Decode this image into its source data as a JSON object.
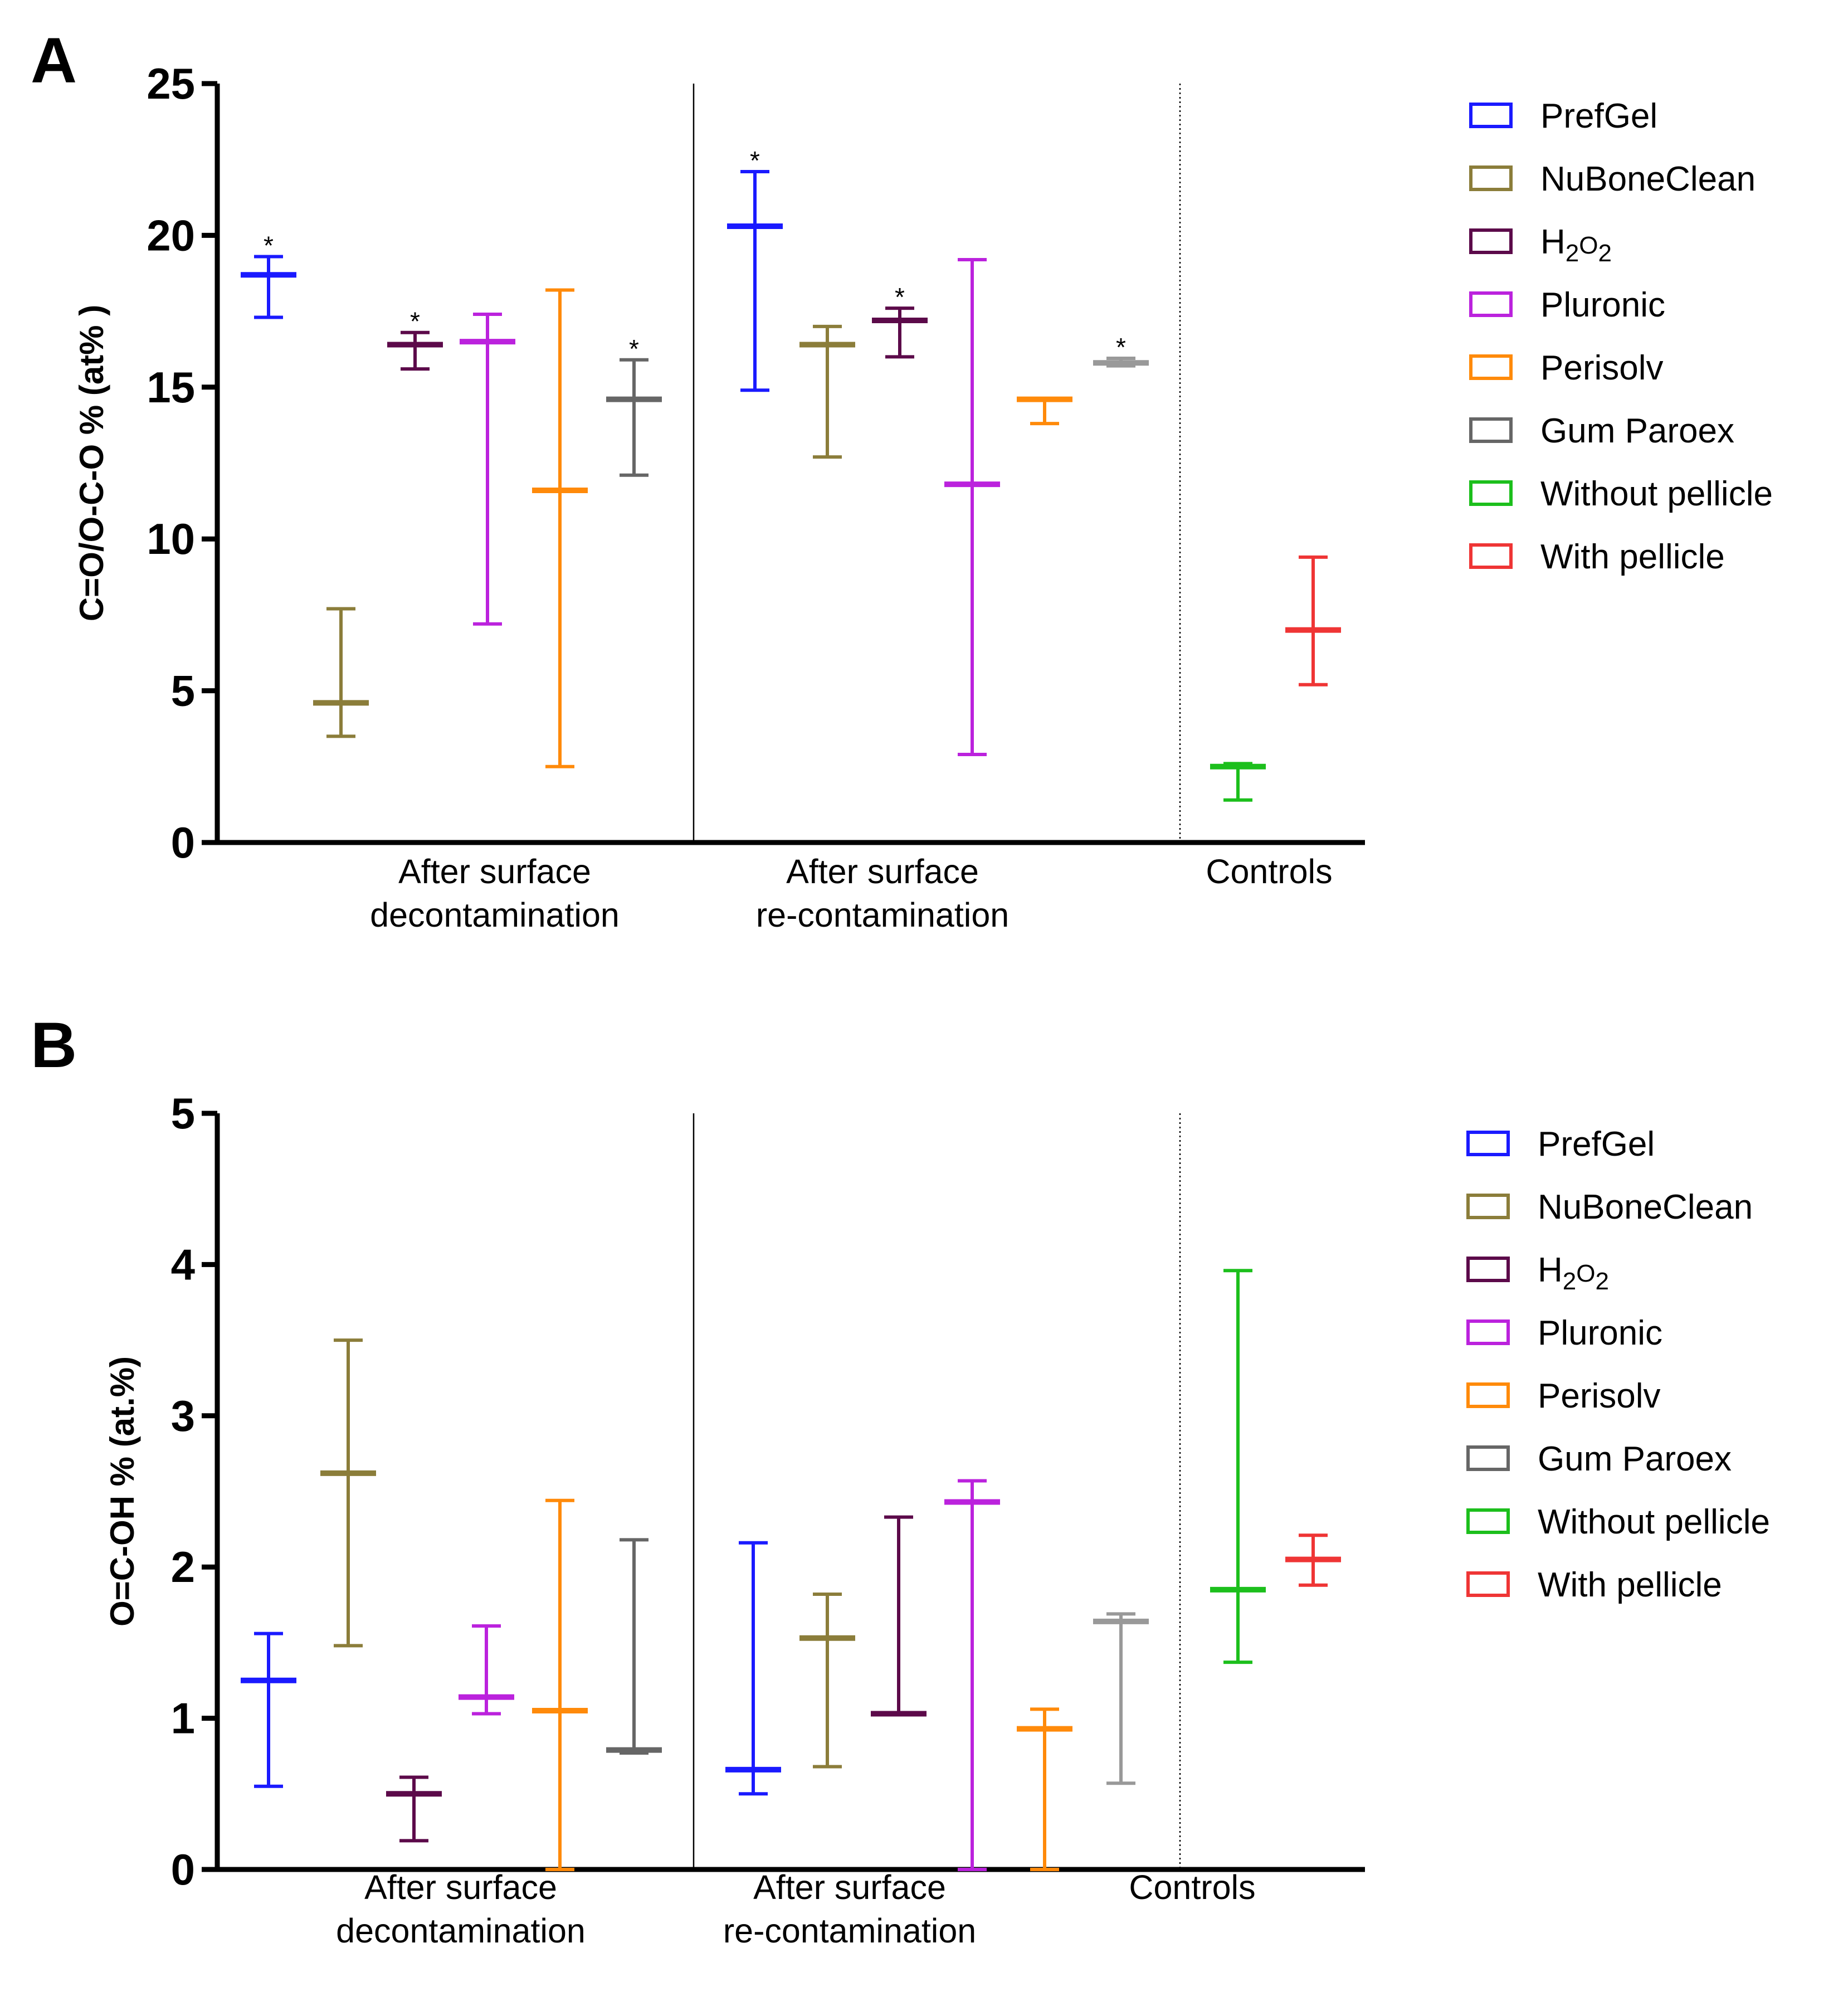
{
  "figure": {
    "label": "Two-panel error-bar chart comparing surface treatments"
  },
  "chart_data": [
    {
      "panel": "A",
      "type": "errorbar",
      "ylabel": "C=O/O-C-O % (at% )",
      "ylim": [
        0,
        25
      ],
      "yticks": [
        "0",
        "5",
        "10",
        "15",
        "20",
        "25"
      ],
      "group_labels": [
        [
          "After surface",
          "decontamination"
        ],
        [
          "After surface",
          "re-contamination"
        ],
        [
          "Controls"
        ]
      ],
      "series_names": [
        "PrefGel",
        "NuBoneClean",
        "H2O2",
        "Pluronic",
        "Perisolv",
        "Gum Paroex",
        "Without pellicle",
        "With pellicle"
      ],
      "legend": [
        {
          "name": "PrefGel",
          "color": "#1a1aff"
        },
        {
          "name": "NuBoneClean",
          "color": "#8b7d3a"
        },
        {
          "name": "H",
          "sub1": "2",
          "mid": "O",
          "sub2": "2",
          "color": "#5c0a4a"
        },
        {
          "name": "Pluronic",
          "color": "#bb22dd"
        },
        {
          "name": "Perisolv",
          "color": "#ff8a0a"
        },
        {
          "name": "Gum Paroex",
          "color": "#666666"
        },
        {
          "name": "Without pellicle",
          "color": "#1cbf1c"
        },
        {
          "name": "With pellicle",
          "color": "#ef3535"
        }
      ],
      "points": [
        {
          "group": 0,
          "series": "PrefGel",
          "color": "#1a1aff",
          "value": 18.7,
          "min": 17.3,
          "max": 19.3,
          "star": "*"
        },
        {
          "group": 0,
          "series": "NuBoneClean",
          "color": "#8b7d3a",
          "value": 4.6,
          "min": 3.5,
          "max": 7.7,
          "star": ""
        },
        {
          "group": 0,
          "series": "H2O2",
          "color": "#5c0a4a",
          "value": 16.4,
          "min": 15.6,
          "max": 16.8,
          "star": "*"
        },
        {
          "group": 0,
          "series": "Pluronic",
          "color": "#bb22dd",
          "value": 16.5,
          "min": 7.2,
          "max": 17.4,
          "star": ""
        },
        {
          "group": 0,
          "series": "Perisolv",
          "color": "#ff8a0a",
          "value": 11.6,
          "min": 2.5,
          "max": 18.2,
          "star": ""
        },
        {
          "group": 0,
          "series": "Gum Paroex",
          "color": "#666666",
          "value": 14.6,
          "min": 12.1,
          "max": 15.9,
          "star": "*"
        },
        {
          "group": 1,
          "series": "PrefGel",
          "color": "#1a1aff",
          "value": 20.3,
          "min": 14.9,
          "max": 22.1,
          "star": "*"
        },
        {
          "group": 1,
          "series": "NuBoneClean",
          "color": "#8b7d3a",
          "value": 16.4,
          "min": 12.7,
          "max": 17.0,
          "star": ""
        },
        {
          "group": 1,
          "series": "H2O2",
          "color": "#5c0a4a",
          "value": 17.2,
          "min": 16.0,
          "max": 17.6,
          "star": "*"
        },
        {
          "group": 1,
          "series": "Pluronic",
          "color": "#bb22dd",
          "value": 11.8,
          "min": 2.9,
          "max": 19.2,
          "star": ""
        },
        {
          "group": 1,
          "series": "Perisolv",
          "color": "#ff8a0a",
          "value": 14.6,
          "min": 13.8,
          "max": 14.6,
          "star": ""
        },
        {
          "group": 1,
          "series": "Gum Paroex",
          "color": "#999999",
          "value": 15.8,
          "min": 15.7,
          "max": 15.95,
          "star": "*"
        },
        {
          "group": 2,
          "series": "Without pellicle",
          "color": "#1cbf1c",
          "value": 2.5,
          "min": 1.4,
          "max": 2.6,
          "star": ""
        },
        {
          "group": 2,
          "series": "With pellicle",
          "color": "#ef3535",
          "value": 7.0,
          "min": 5.2,
          "max": 9.4,
          "star": ""
        }
      ]
    },
    {
      "panel": "B",
      "type": "errorbar",
      "ylabel": "O=C-OH % (at.%)",
      "ylim": [
        0,
        5
      ],
      "yticks": [
        "0",
        "1",
        "2",
        "3",
        "4",
        "5"
      ],
      "group_labels": [
        [
          "After surface",
          "decontamination"
        ],
        [
          "After surface",
          "re-contamination"
        ],
        [
          "Controls"
        ]
      ],
      "series_names": [
        "PrefGel",
        "NuBoneClean",
        "H2O2",
        "Pluronic",
        "Perisolv",
        "Gum Paroex",
        "Without pellicle",
        "With pellicle"
      ],
      "legend": [
        {
          "name": "PrefGel",
          "color": "#1a1aff"
        },
        {
          "name": "NuBoneClean",
          "color": "#8b7d3a"
        },
        {
          "name": "H",
          "sub1": "2",
          "mid": "O",
          "sub2": "2",
          "color": "#5c0a4a"
        },
        {
          "name": "Pluronic",
          "color": "#bb22dd"
        },
        {
          "name": "Perisolv",
          "color": "#ff8a0a"
        },
        {
          "name": "Gum Paroex",
          "color": "#666666"
        },
        {
          "name": "Without pellicle",
          "color": "#1cbf1c"
        },
        {
          "name": "With pellicle",
          "color": "#ef3535"
        }
      ],
      "points": [
        {
          "group": 0,
          "series": "PrefGel",
          "color": "#1a1aff",
          "value": 1.25,
          "min": 0.55,
          "max": 1.56,
          "star": ""
        },
        {
          "group": 0,
          "series": "NuBoneClean",
          "color": "#8b7d3a",
          "value": 2.62,
          "min": 1.48,
          "max": 3.5,
          "star": ""
        },
        {
          "group": 0,
          "series": "H2O2",
          "color": "#5c0a4a",
          "value": 0.5,
          "min": 0.19,
          "max": 0.61,
          "star": ""
        },
        {
          "group": 0,
          "series": "Pluronic",
          "color": "#bb22dd",
          "value": 1.14,
          "min": 1.03,
          "max": 1.61,
          "star": ""
        },
        {
          "group": 0,
          "series": "Perisolv",
          "color": "#ff8a0a",
          "value": 1.05,
          "min": 0.0,
          "max": 2.44,
          "star": ""
        },
        {
          "group": 0,
          "series": "Gum Paroex",
          "color": "#666666",
          "value": 0.79,
          "min": 0.77,
          "max": 2.18,
          "star": ""
        },
        {
          "group": 1,
          "series": "PrefGel",
          "color": "#1a1aff",
          "value": 0.66,
          "min": 0.5,
          "max": 2.16,
          "star": ""
        },
        {
          "group": 1,
          "series": "NuBoneClean",
          "color": "#8b7d3a",
          "value": 1.53,
          "min": 0.68,
          "max": 1.82,
          "star": ""
        },
        {
          "group": 1,
          "series": "H2O2",
          "color": "#5c0a4a",
          "value": 1.03,
          "min": 1.03,
          "max": 2.33,
          "star": ""
        },
        {
          "group": 1,
          "series": "Pluronic",
          "color": "#bb22dd",
          "value": 2.43,
          "min": 0.0,
          "max": 2.57,
          "star": ""
        },
        {
          "group": 1,
          "series": "Perisolv",
          "color": "#ff8a0a",
          "value": 0.93,
          "min": 0.0,
          "max": 1.06,
          "star": ""
        },
        {
          "group": 1,
          "series": "Gum Paroex",
          "color": "#999999",
          "value": 1.64,
          "min": 0.57,
          "max": 1.69,
          "star": ""
        },
        {
          "group": 2,
          "series": "Without pellicle",
          "color": "#1cbf1c",
          "value": 1.85,
          "min": 1.37,
          "max": 3.96,
          "star": ""
        },
        {
          "group": 2,
          "series": "With pellicle",
          "color": "#ef3535",
          "value": 2.05,
          "min": 1.88,
          "max": 2.21,
          "star": ""
        }
      ]
    }
  ]
}
